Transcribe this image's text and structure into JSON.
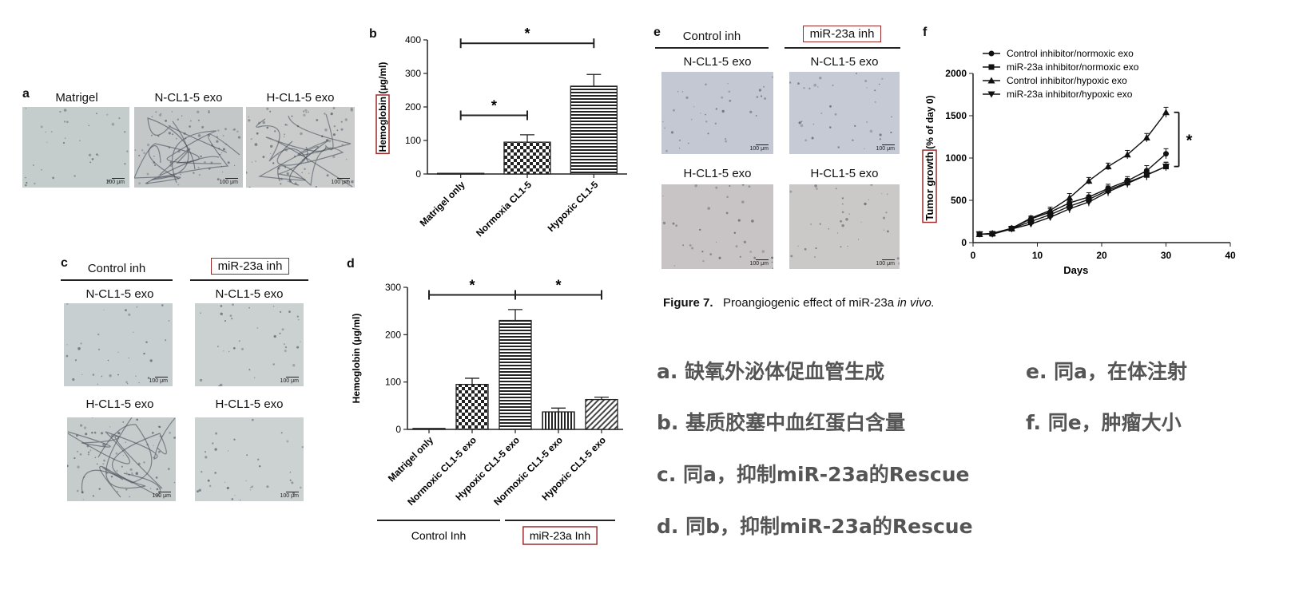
{
  "panel_a": {
    "label": "a",
    "images": [
      {
        "caption": "Matrigel",
        "scale": "100 μm",
        "tone": "#c4cdcc"
      },
      {
        "caption": "N-CL1-5 exo",
        "scale": "100 μm",
        "tone": "#c3c7c8"
      },
      {
        "caption": "H-CL1-5 exo",
        "scale": "100 μm",
        "tone": "#c9cccb"
      }
    ]
  },
  "panel_b": {
    "label": "b",
    "chart_data": {
      "type": "bar",
      "categories": [
        "Matrigel only",
        "Normoxia CL1-5",
        "Hypoxic CL1-5"
      ],
      "values": [
        2,
        95,
        262
      ],
      "errors": [
        0,
        22,
        35
      ],
      "patterns": [
        "none",
        "checker",
        "hlines"
      ],
      "ylabel_highlight": "Hemoglobin",
      "ylabel_rest": " (μg/ml)",
      "ylim": [
        0,
        400
      ],
      "yticks": [
        0,
        100,
        200,
        300,
        400
      ],
      "significance": [
        {
          "from": 0,
          "to": 2,
          "label": "*",
          "y": 390
        },
        {
          "from": 0,
          "to": 1,
          "label": "*",
          "y": 175
        }
      ]
    }
  },
  "panel_c": {
    "label": "c",
    "group_left": "Control inh",
    "group_right": "miR-23a inh",
    "images": [
      {
        "caption": "N-CL1-5 exo",
        "scale": "100 μm",
        "tone": "#c8cfd0"
      },
      {
        "caption": "N-CL1-5 exo",
        "scale": "100 μm",
        "tone": "#cbd0d0"
      },
      {
        "caption": "H-CL1-5 exo",
        "scale": "100 μm",
        "tone": "#c6cbcb"
      },
      {
        "caption": "H-CL1-5 exo",
        "scale": "100 μm",
        "tone": "#ccd1d2"
      }
    ]
  },
  "panel_d": {
    "label": "d",
    "chart_data": {
      "type": "bar",
      "categories": [
        "Matrigel only",
        "Normoxic CL1-5 exo",
        "Hypoxic CL1-5 exo",
        "Normoxic CL1-5 exo",
        "Hypoxic CL1-5 exo"
      ],
      "values": [
        2,
        95,
        230,
        37,
        63
      ],
      "errors": [
        0,
        13,
        23,
        8,
        5
      ],
      "patterns": [
        "none",
        "checker",
        "hlines",
        "vlines",
        "diag"
      ],
      "ylabel": "Hemoglobin (μg/ml)",
      "ylim": [
        0,
        300
      ],
      "yticks": [
        0,
        100,
        200,
        300
      ],
      "significance": [
        {
          "from": 0,
          "to": 2,
          "label": "*",
          "y": 284
        },
        {
          "from": 2,
          "to": 4,
          "label": "*",
          "y": 284
        }
      ],
      "group_left": "Control Inh",
      "group_right": "miR-23a Inh"
    }
  },
  "panel_e": {
    "label": "e",
    "group_left": "Control inh",
    "group_right": "miR-23a inh",
    "images": [
      {
        "caption": "N-CL1-5 exo",
        "scale": "100 μm",
        "tone": "#c3c8d3"
      },
      {
        "caption": "N-CL1-5 exo",
        "scale": "100 μm",
        "tone": "#c5cad4"
      },
      {
        "caption": "H-CL1-5 exo",
        "scale": "100 μm",
        "tone": "#c8c4c6"
      },
      {
        "caption": "H-CL1-5 exo",
        "scale": "100 μm",
        "tone": "#cbc8c8"
      }
    ]
  },
  "panel_f": {
    "label": "f",
    "chart_data": {
      "type": "line",
      "x": [
        1,
        3,
        6,
        9,
        12,
        15,
        18,
        21,
        24,
        27,
        30
      ],
      "series": [
        {
          "name": "Control inhibitor/normoxic exo",
          "marker": "circle",
          "values": [
            100,
            105,
            170,
            280,
            360,
            470,
            540,
            640,
            730,
            850,
            1050
          ],
          "errors": [
            10,
            10,
            15,
            25,
            40,
            50,
            50,
            50,
            50,
            60,
            60
          ]
        },
        {
          "name": "miR-23a inhibitor/normoxic exo",
          "marker": "square",
          "values": [
            100,
            105,
            165,
            250,
            330,
            430,
            510,
            620,
            710,
            800,
            900
          ],
          "errors": [
            10,
            10,
            15,
            25,
            40,
            50,
            50,
            50,
            50,
            60,
            50
          ]
        },
        {
          "name": "Control inhibitor/hypoxic exo",
          "marker": "triangle-up",
          "values": [
            100,
            110,
            170,
            290,
            380,
            530,
            730,
            900,
            1040,
            1240,
            1540
          ],
          "errors": [
            10,
            10,
            15,
            25,
            40,
            50,
            40,
            40,
            50,
            50,
            60
          ]
        },
        {
          "name": "miR-23a inhibitor/hypoxic exo",
          "marker": "triangle-down",
          "values": [
            100,
            100,
            160,
            220,
            300,
            400,
            480,
            600,
            700,
            800,
            900
          ],
          "errors": [
            10,
            10,
            15,
            25,
            40,
            50,
            50,
            50,
            50,
            60,
            50
          ]
        }
      ],
      "ylabel_highlight": "Tumor growth",
      "ylabel_rest": " (% of day 0)",
      "xlabel": "Days",
      "xlim": [
        0,
        40
      ],
      "ylim": [
        0,
        2000
      ],
      "xticks": [
        0,
        10,
        20,
        30,
        40
      ],
      "yticks": [
        0,
        500,
        1000,
        1500,
        2000
      ],
      "significance": {
        "label": "*",
        "from_value": 900,
        "to_value": 1540
      }
    }
  },
  "figure_caption": {
    "label": "Figure 7.",
    "text_plain": "Proangiogenic effect of miR-23a ",
    "text_italic": "in vivo."
  },
  "notes": [
    "a.  缺氧外泌体促血管生成",
    "b.  基质胶塞中血红蛋白含量",
    "c.  同a，抑制miR-23a的Rescue",
    "d.  同b，抑制miR-23a的Rescue",
    "e.  同a，在体注射",
    "f.  同e，肿瘤大小"
  ],
  "colors": {
    "highlight_box": "#9b2b2b",
    "note_text": "#555555",
    "bar_edge": "#222222"
  }
}
